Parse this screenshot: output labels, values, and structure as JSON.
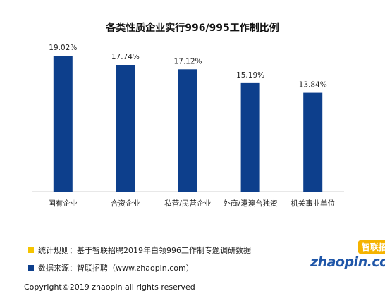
{
  "chart_data": {
    "type": "bar",
    "title": "各类性质企业实行996/995工作制比例",
    "categories": [
      "国有企业",
      "合资企业",
      "私营/民营企业",
      "外商/港澳台独资",
      "机关事业单位"
    ],
    "values": [
      19.02,
      17.74,
      17.12,
      15.19,
      13.84
    ],
    "value_labels": [
      "19.02%",
      "17.74%",
      "17.12%",
      "15.19%",
      "13.84%"
    ],
    "ylim": [
      0,
      20.5
    ],
    "grid": false,
    "bar_color": "#0d3f8c"
  },
  "notes": [
    {
      "text": "统计规则：基于智联招聘2019年白领996工作制专题调研数据",
      "color": "#f5c400"
    },
    {
      "text": "数据来源：智联招聘（www.zhaopin.com）",
      "color": "#0d3f8c"
    }
  ],
  "logo": {
    "cn": "智联招聘",
    "en": "zhaopin.com"
  },
  "copyright": "Copyright©2019 zhaopin all rights reserved"
}
